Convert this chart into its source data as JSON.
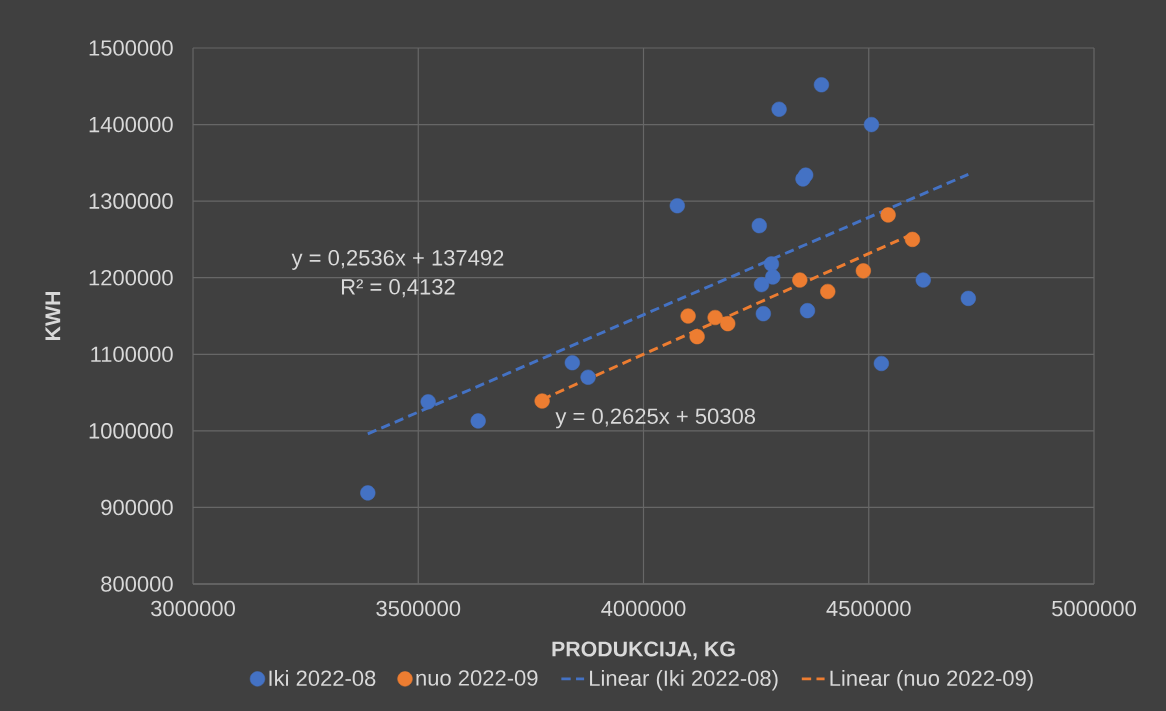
{
  "chart_data": {
    "type": "scatter",
    "xlabel": "PRODUKCIJA, KG",
    "ylabel": "KWH",
    "xlim": [
      3000000,
      5000000
    ],
    "ylim": [
      800000,
      1500000
    ],
    "xticks": [
      3000000,
      3500000,
      4000000,
      4500000,
      5000000
    ],
    "yticks": [
      800000,
      900000,
      1000000,
      1100000,
      1200000,
      1300000,
      1400000,
      1500000
    ],
    "grid": true,
    "legend": "bottom",
    "series": [
      {
        "name": "Iki 2022-08",
        "color": "#4472c4",
        "marker": "circle",
        "x": [
          3388000,
          3522000,
          3633000,
          3842000,
          3877000,
          4075000,
          4301000,
          4395000,
          4506000,
          4354000,
          4360000,
          4257000,
          4284000,
          4287000,
          4262000,
          4266000,
          4364000,
          4621000,
          4721000,
          4528000
        ],
        "values": [
          919000,
          1038000,
          1013000,
          1089000,
          1070000,
          1294000,
          1420000,
          1452000,
          1400000,
          1329000,
          1334000,
          1268000,
          1218000,
          1201000,
          1191000,
          1153000,
          1157000,
          1197000,
          1173000,
          1088000
        ]
      },
      {
        "name": "nuo 2022-09",
        "color": "#ed7d31",
        "marker": "circle",
        "x": [
          3775000,
          4099000,
          4119000,
          4159000,
          4187000,
          4347000,
          4409000,
          4488000,
          4543000,
          4597000
        ],
        "values": [
          1039000,
          1150000,
          1123000,
          1148000,
          1140000,
          1197000,
          1182000,
          1209000,
          1282000,
          1250000
        ]
      },
      {
        "name": "Linear (Iki 2022-08)",
        "type": "line",
        "line_style": "dashed",
        "color": "#4472c4",
        "x": [
          3388000,
          4721000
        ],
        "values": [
          996000,
          1335000
        ]
      },
      {
        "name": "Linear (nuo 2022-09)",
        "type": "line",
        "line_style": "dashed",
        "color": "#ed7d31",
        "x": [
          3775000,
          4597000
        ],
        "values": [
          1041000,
          1257000
        ]
      }
    ],
    "annotations": [
      "y = 0,2536x + 137492",
      "R² = 0,4132",
      "y = 0,2625x + 50308"
    ]
  }
}
